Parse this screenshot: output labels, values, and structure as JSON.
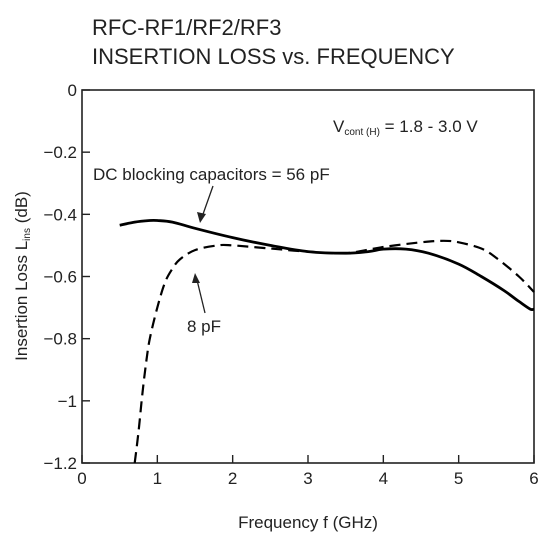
{
  "chart_data": {
    "type": "line",
    "title_line1": "RFC-RF1/RF2/RF3",
    "title_line2": "INSERTION LOSS vs. FREQUENCY",
    "xlabel": "Frequency  f (GHz)",
    "ylabel": {
      "main": "Insertion Loss  L",
      "sub": "ins",
      "unit": " (dB)"
    },
    "xlim": [
      0,
      6
    ],
    "ylim": [
      -1.2,
      0
    ],
    "x_ticks": [
      0,
      1,
      2,
      3,
      4,
      5,
      6
    ],
    "x_tick_labels": [
      "0",
      "1",
      "2",
      "3",
      "4",
      "5",
      "6"
    ],
    "y_ticks": [
      0,
      -0.2,
      -0.4,
      -0.6,
      -0.8,
      -1,
      -1.2
    ],
    "y_tick_labels": [
      "0",
      "−0.2",
      "−0.4",
      "−0.6",
      "−0.8",
      "−1",
      "−1.2"
    ],
    "grid": false,
    "condition": {
      "main": "V",
      "sub": "cont (H)",
      "rest": " = 1.8 - 3.0 V"
    },
    "series": [
      {
        "name": "DC blocking capacitors = 56 pF",
        "style": "solid",
        "color": "#000000",
        "x": [
          0.5,
          0.7,
          0.9,
          1.0,
          1.2,
          1.5,
          2.0,
          2.5,
          3.0,
          3.5,
          3.8,
          4.0,
          4.3,
          4.6,
          5.0,
          5.3,
          5.6,
          5.8,
          5.95,
          6.0
        ],
        "y": [
          -0.435,
          -0.425,
          -0.42,
          -0.42,
          -0.425,
          -0.445,
          -0.475,
          -0.5,
          -0.52,
          -0.525,
          -0.52,
          -0.512,
          -0.512,
          -0.525,
          -0.56,
          -0.6,
          -0.645,
          -0.68,
          -0.705,
          -0.705
        ]
      },
      {
        "name": "8 pF",
        "style": "dashed",
        "color": "#000000",
        "x": [
          0.7,
          0.75,
          0.8,
          0.85,
          0.9,
          1.0,
          1.1,
          1.2,
          1.3,
          1.5,
          1.8,
          2.0,
          2.5,
          3.0,
          3.5,
          4.0,
          4.5,
          4.8,
          5.0,
          5.3,
          5.5,
          5.8,
          6.0
        ],
        "y": [
          -1.2,
          -1.1,
          -0.98,
          -0.88,
          -0.8,
          -0.7,
          -0.62,
          -0.575,
          -0.545,
          -0.515,
          -0.5,
          -0.5,
          -0.51,
          -0.52,
          -0.525,
          -0.505,
          -0.49,
          -0.485,
          -0.49,
          -0.51,
          -0.54,
          -0.6,
          -0.65
        ]
      }
    ],
    "annotations": {
      "cap56": "DC blocking capacitors = 56 pF",
      "cap8": "8 pF"
    }
  }
}
